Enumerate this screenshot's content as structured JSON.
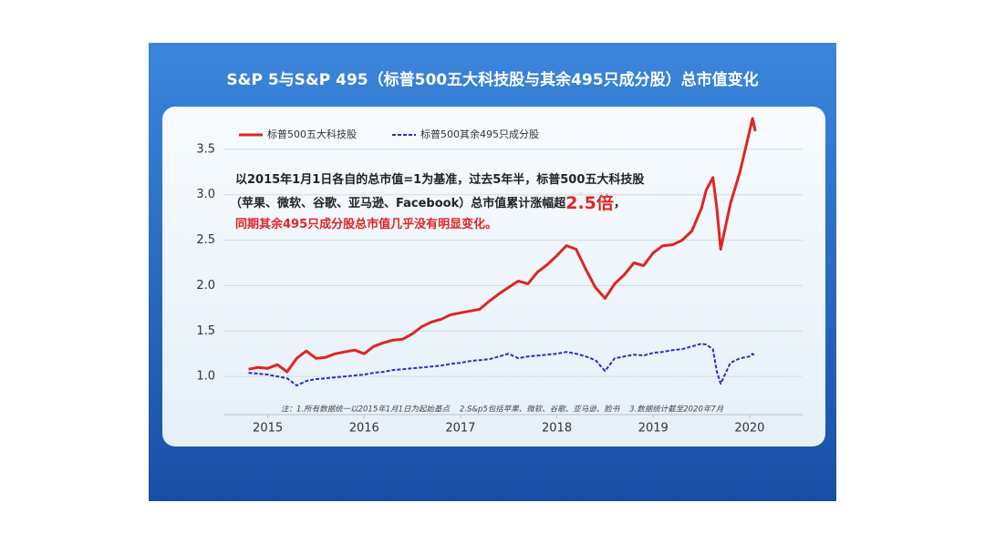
{
  "chart_data": {
    "type": "line",
    "title": "S&P 5与S&P 495（标普500五大科技股与其余495只成分股）总市值变化",
    "annotation": {
      "line1": "以2015年1月1日各自的总市值=1为基准，过去5年半，标普500五大科技股",
      "line2": "（苹果、微软、谷歌、亚马逊、Facebook）总市值累计涨幅超",
      "highlight": "2.5倍",
      "line2_end": "，",
      "line3": "同期其余495只成分股总市值几乎没有明显变化。"
    },
    "note": "注：1.所有数据统一以2015年1月1日为起始基点    2.S&p5包括苹果、微软、谷歌、亚马逊、脸书    3.数据统计截至2020年7月",
    "x": [
      2014.8,
      2014.9,
      2015.0,
      2015.1,
      2015.2,
      2015.3,
      2015.4,
      2015.5,
      2015.6,
      2015.7,
      2015.8,
      2015.9,
      2016.0,
      2016.1,
      2016.2,
      2016.3,
      2016.4,
      2016.5,
      2016.6,
      2016.7,
      2016.8,
      2016.9,
      2017.0,
      2017.1,
      2017.2,
      2017.3,
      2017.4,
      2017.5,
      2017.6,
      2017.7,
      2017.8,
      2017.9,
      2018.0,
      2018.1,
      2018.2,
      2018.3,
      2018.4,
      2018.5,
      2018.6,
      2018.7,
      2018.8,
      2018.9,
      2019.0,
      2019.1,
      2019.2,
      2019.3,
      2019.4,
      2019.5,
      2019.55,
      2019.62,
      2019.66,
      2019.7,
      2019.8,
      2019.9,
      2020.0,
      2020.03,
      2020.06
    ],
    "series": [
      {
        "name": "标普500五大科技股",
        "color": "#e02424",
        "dashed": false,
        "values": [
          1.08,
          1.1,
          1.09,
          1.13,
          1.05,
          1.2,
          1.28,
          1.2,
          1.21,
          1.25,
          1.27,
          1.29,
          1.25,
          1.33,
          1.37,
          1.4,
          1.41,
          1.47,
          1.55,
          1.6,
          1.63,
          1.68,
          1.7,
          1.72,
          1.74,
          1.83,
          1.91,
          1.98,
          2.05,
          2.02,
          2.15,
          2.23,
          2.33,
          2.44,
          2.4,
          2.18,
          1.98,
          1.86,
          2.02,
          2.12,
          2.25,
          2.22,
          2.36,
          2.44,
          2.45,
          2.5,
          2.6,
          2.85,
          3.05,
          3.19,
          2.85,
          2.4,
          2.9,
          3.25,
          3.7,
          3.84,
          3.7
        ]
      },
      {
        "name": "标普500其余495只成分股",
        "color": "#2a2fc4",
        "dashed": true,
        "values": [
          1.04,
          1.03,
          1.02,
          1.0,
          0.98,
          0.9,
          0.95,
          0.97,
          0.98,
          0.99,
          1.0,
          1.01,
          1.02,
          1.04,
          1.05,
          1.07,
          1.08,
          1.09,
          1.1,
          1.11,
          1.12,
          1.14,
          1.15,
          1.17,
          1.18,
          1.19,
          1.22,
          1.25,
          1.2,
          1.22,
          1.23,
          1.24,
          1.25,
          1.27,
          1.25,
          1.22,
          1.18,
          1.06,
          1.2,
          1.22,
          1.24,
          1.23,
          1.26,
          1.27,
          1.29,
          1.3,
          1.33,
          1.36,
          1.35,
          1.3,
          1.05,
          0.92,
          1.15,
          1.2,
          1.22,
          1.25,
          1.22
        ]
      }
    ],
    "xlim": [
      2014.54,
      2020.55
    ],
    "xticks": [
      2015,
      2016,
      2017,
      2018,
      2019,
      2020
    ],
    "ylim": [
      0.58,
      3.89
    ],
    "yticks": [
      {
        "value": 1,
        "label": "1.0"
      },
      1.5,
      {
        "value": 2,
        "label": "2.0"
      },
      2.5,
      {
        "value": 3,
        "label": "3.0"
      },
      3.5
    ],
    "grid": true
  }
}
